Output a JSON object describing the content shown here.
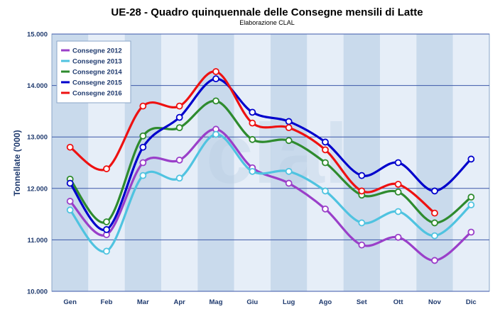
{
  "chart_data": {
    "type": "line",
    "title": "UE-28 - Quadro quinquennale delle Consegne mensili di Latte",
    "subtitle": "Elaborazione CLAL",
    "ylabel": "Tonnellate ('000)",
    "watermark": "clal",
    "categories": [
      "Gen",
      "Feb",
      "Mar",
      "Apr",
      "Mag",
      "Giu",
      "Lug",
      "Ago",
      "Set",
      "Ott",
      "Nov",
      "Dic"
    ],
    "ylim": [
      10000,
      15000
    ],
    "yticks": [
      {
        "value": 10000,
        "label": "10.000"
      },
      {
        "value": 11000,
        "label": "11.000"
      },
      {
        "value": 12000,
        "label": "12.000"
      },
      {
        "value": 13000,
        "label": "13.000"
      },
      {
        "value": 14000,
        "label": "14.000"
      },
      {
        "value": 15000,
        "label": "15.000"
      }
    ],
    "grid": true,
    "legend_position": "top-left",
    "series": [
      {
        "name": "Consegne 2012",
        "color": "#9a3fc9",
        "values": [
          11750,
          11100,
          12500,
          12550,
          13150,
          12400,
          12100,
          11600,
          10900,
          11050,
          10600,
          11150
        ]
      },
      {
        "name": "Consegne 2013",
        "color": "#4fc3e0",
        "values": [
          11580,
          10780,
          12250,
          12200,
          13050,
          12330,
          12330,
          11950,
          11330,
          11550,
          11080,
          11680
        ]
      },
      {
        "name": "Consegne 2014",
        "color": "#2e8b2e",
        "values": [
          12180,
          11350,
          13020,
          13180,
          13700,
          12950,
          12930,
          12500,
          11870,
          11930,
          11330,
          11830
        ]
      },
      {
        "name": "Consegne 2015",
        "color": "#0000cc",
        "values": [
          12100,
          11200,
          12800,
          13380,
          14130,
          13480,
          13300,
          12900,
          12250,
          12500,
          11950,
          12570
        ]
      },
      {
        "name": "Consegne 2016",
        "color": "#ee1111",
        "values": [
          12800,
          12380,
          13600,
          13600,
          14270,
          13270,
          13180,
          12750,
          11950,
          12080,
          11520,
          null
        ]
      }
    ]
  }
}
